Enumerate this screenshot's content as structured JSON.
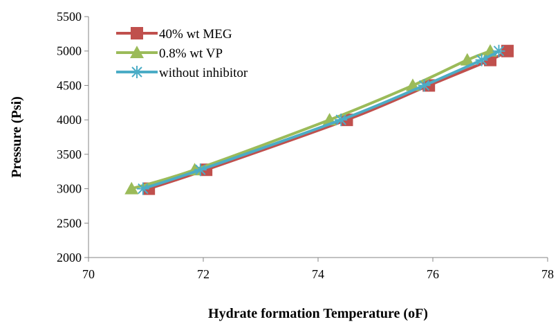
{
  "chart_data": {
    "type": "line",
    "title": "",
    "xlabel": "Hydrate formation Temperature (oF)",
    "ylabel": "Pressure (Psi)",
    "xlim": [
      70,
      78
    ],
    "ylim": [
      2000,
      5500
    ],
    "x_ticks": [
      70,
      72,
      74,
      76,
      78
    ],
    "y_ticks": [
      2000,
      2500,
      3000,
      3500,
      4000,
      4500,
      5000,
      5500
    ],
    "grid": false,
    "legend_position": "top-left",
    "series": [
      {
        "name": "40% wt MEG",
        "color": "#C0504D",
        "marker": "square",
        "x": [
          71.05,
          72.05,
          74.5,
          75.93,
          77.0,
          77.3
        ],
        "y": [
          3000,
          3275,
          4000,
          4500,
          4870,
          5000
        ]
      },
      {
        "name": "0.8% wt VP",
        "color": "#9BBB59",
        "marker": "triangle",
        "x": [
          70.75,
          71.85,
          74.2,
          75.65,
          76.6,
          77.0
        ],
        "y": [
          3000,
          3275,
          4000,
          4500,
          4870,
          5000
        ]
      },
      {
        "name": "without inhibitor",
        "color": "#4BACC6",
        "marker": "asterisk",
        "x": [
          70.95,
          71.95,
          74.4,
          75.85,
          76.85,
          77.15
        ],
        "y": [
          3000,
          3275,
          4000,
          4500,
          4870,
          5000
        ]
      }
    ]
  }
}
